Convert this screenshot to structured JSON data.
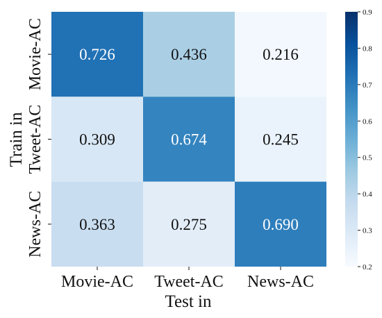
{
  "chart_data": {
    "type": "heatmap",
    "title": "",
    "xlabel": "Test in",
    "ylabel": "Train in",
    "x_categories": [
      "Movie-AC",
      "Tweet-AC",
      "News-AC"
    ],
    "y_categories": [
      "Movie-AC",
      "Tweet-AC",
      "News-AC"
    ],
    "values": [
      [
        0.726,
        0.436,
        0.216
      ],
      [
        0.309,
        0.674,
        0.245
      ],
      [
        0.363,
        0.275,
        0.69
      ]
    ],
    "value_labels": [
      [
        "0.726",
        "0.436",
        "0.216"
      ],
      [
        "0.309",
        "0.674",
        "0.245"
      ],
      [
        "0.363",
        "0.275",
        "0.690"
      ]
    ],
    "colorbar": {
      "min": 0.2,
      "max": 0.9,
      "ticks": [
        0.2,
        0.3,
        0.4,
        0.5,
        0.6,
        0.7,
        0.8,
        0.9
      ],
      "tick_labels": [
        "0.2",
        "0.3",
        "0.4",
        "0.5",
        "0.6",
        "0.7",
        "0.8",
        "0.9"
      ]
    },
    "colormap": "Blues",
    "grid": false,
    "legend": "right"
  }
}
